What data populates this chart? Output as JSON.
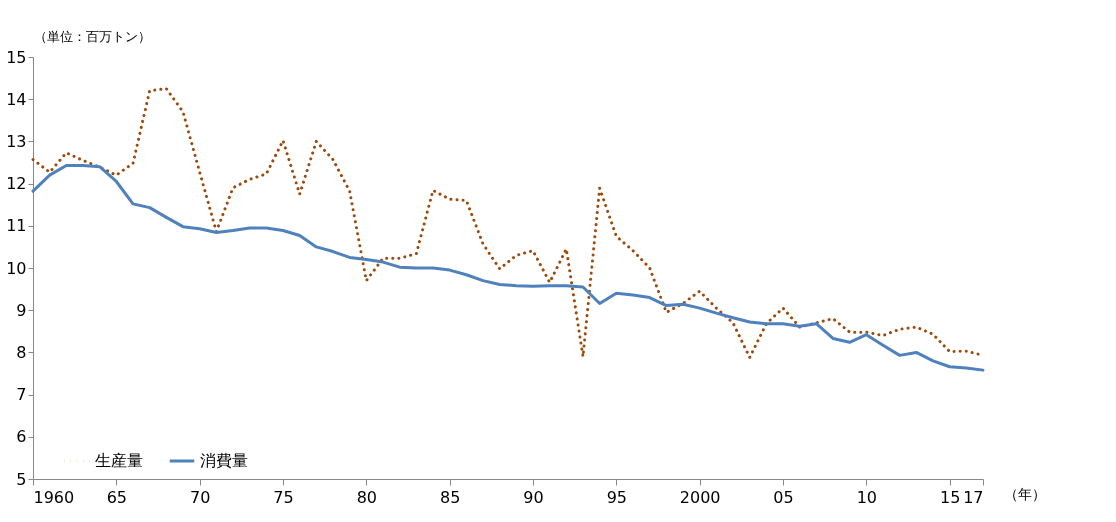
{
  "chart_data": {
    "type": "line",
    "ylabel": "（単位：百万トン）",
    "xlabel": "（年）",
    "x": [
      1960,
      1961,
      1962,
      1963,
      1964,
      1965,
      1966,
      1967,
      1968,
      1969,
      1970,
      1971,
      1972,
      1973,
      1974,
      1975,
      1976,
      1977,
      1978,
      1979,
      1980,
      1981,
      1982,
      1983,
      1984,
      1985,
      1986,
      1987,
      1988,
      1989,
      1990,
      1991,
      1992,
      1993,
      1994,
      1995,
      1996,
      1997,
      1998,
      1999,
      2000,
      2001,
      2002,
      2003,
      2004,
      2005,
      2006,
      2007,
      2008,
      2009,
      2010,
      2011,
      2012,
      2013,
      2014,
      2015,
      2016,
      2017
    ],
    "series": [
      {
        "name": "生産量",
        "color": "#9c4a0e",
        "line_style": "dotted",
        "values": [
          12.57,
          12.27,
          12.73,
          12.55,
          12.39,
          12.2,
          12.48,
          14.2,
          14.25,
          13.7,
          12.27,
          10.86,
          11.9,
          12.1,
          12.23,
          13.02,
          11.75,
          13.0,
          12.57,
          11.82,
          9.7,
          10.23,
          10.23,
          10.34,
          11.84,
          11.63,
          11.6,
          10.57,
          9.98,
          10.3,
          10.41,
          9.66,
          10.45,
          7.9,
          11.89,
          10.75,
          10.41,
          10.0,
          8.95,
          9.16,
          9.45,
          9.05,
          8.7,
          7.88,
          8.68,
          9.05,
          8.6,
          8.7,
          8.8,
          8.48,
          8.48,
          8.4,
          8.55,
          8.6,
          8.43,
          8.02,
          8.03,
          7.93
        ]
      },
      {
        "name": "消費量",
        "color": "#4f81bd",
        "line_style": "solid",
        "values": [
          11.82,
          12.2,
          12.43,
          12.43,
          12.4,
          12.05,
          11.52,
          11.43,
          11.2,
          10.98,
          10.93,
          10.84,
          10.89,
          10.95,
          10.95,
          10.89,
          10.77,
          10.5,
          10.39,
          10.25,
          10.2,
          10.14,
          10.02,
          10.0,
          10.0,
          9.95,
          9.84,
          9.7,
          9.61,
          9.58,
          9.57,
          9.58,
          9.58,
          9.55,
          9.16,
          9.4,
          9.36,
          9.3,
          9.11,
          9.14,
          9.05,
          8.93,
          8.82,
          8.72,
          8.68,
          8.68,
          8.62,
          8.68,
          8.33,
          8.24,
          8.42,
          8.17,
          7.93,
          8.0,
          7.8,
          7.66,
          7.63,
          7.58
        ]
      }
    ],
    "xlim": [
      1960,
      2017
    ],
    "xticks": [
      1960,
      {
        "value": 1965,
        "label": "65"
      },
      {
        "value": 1970,
        "label": "70"
      },
      {
        "value": 1975,
        "label": "75"
      },
      {
        "value": 1980,
        "label": "80"
      },
      {
        "value": 1985,
        "label": "85"
      },
      {
        "value": 1990,
        "label": "90"
      },
      {
        "value": 1995,
        "label": "95"
      },
      2000,
      {
        "value": 2005,
        "label": "05"
      },
      {
        "value": 2010,
        "label": "10"
      },
      {
        "value": 2015,
        "label": "15"
      },
      {
        "value": 2017,
        "label": "17"
      }
    ],
    "ylim": [
      5,
      15
    ],
    "yticks": [
      5,
      6,
      7,
      8,
      9,
      10,
      11,
      12,
      13,
      14,
      15
    ],
    "grid": false,
    "legend": "bottom left",
    "marker": "none"
  }
}
